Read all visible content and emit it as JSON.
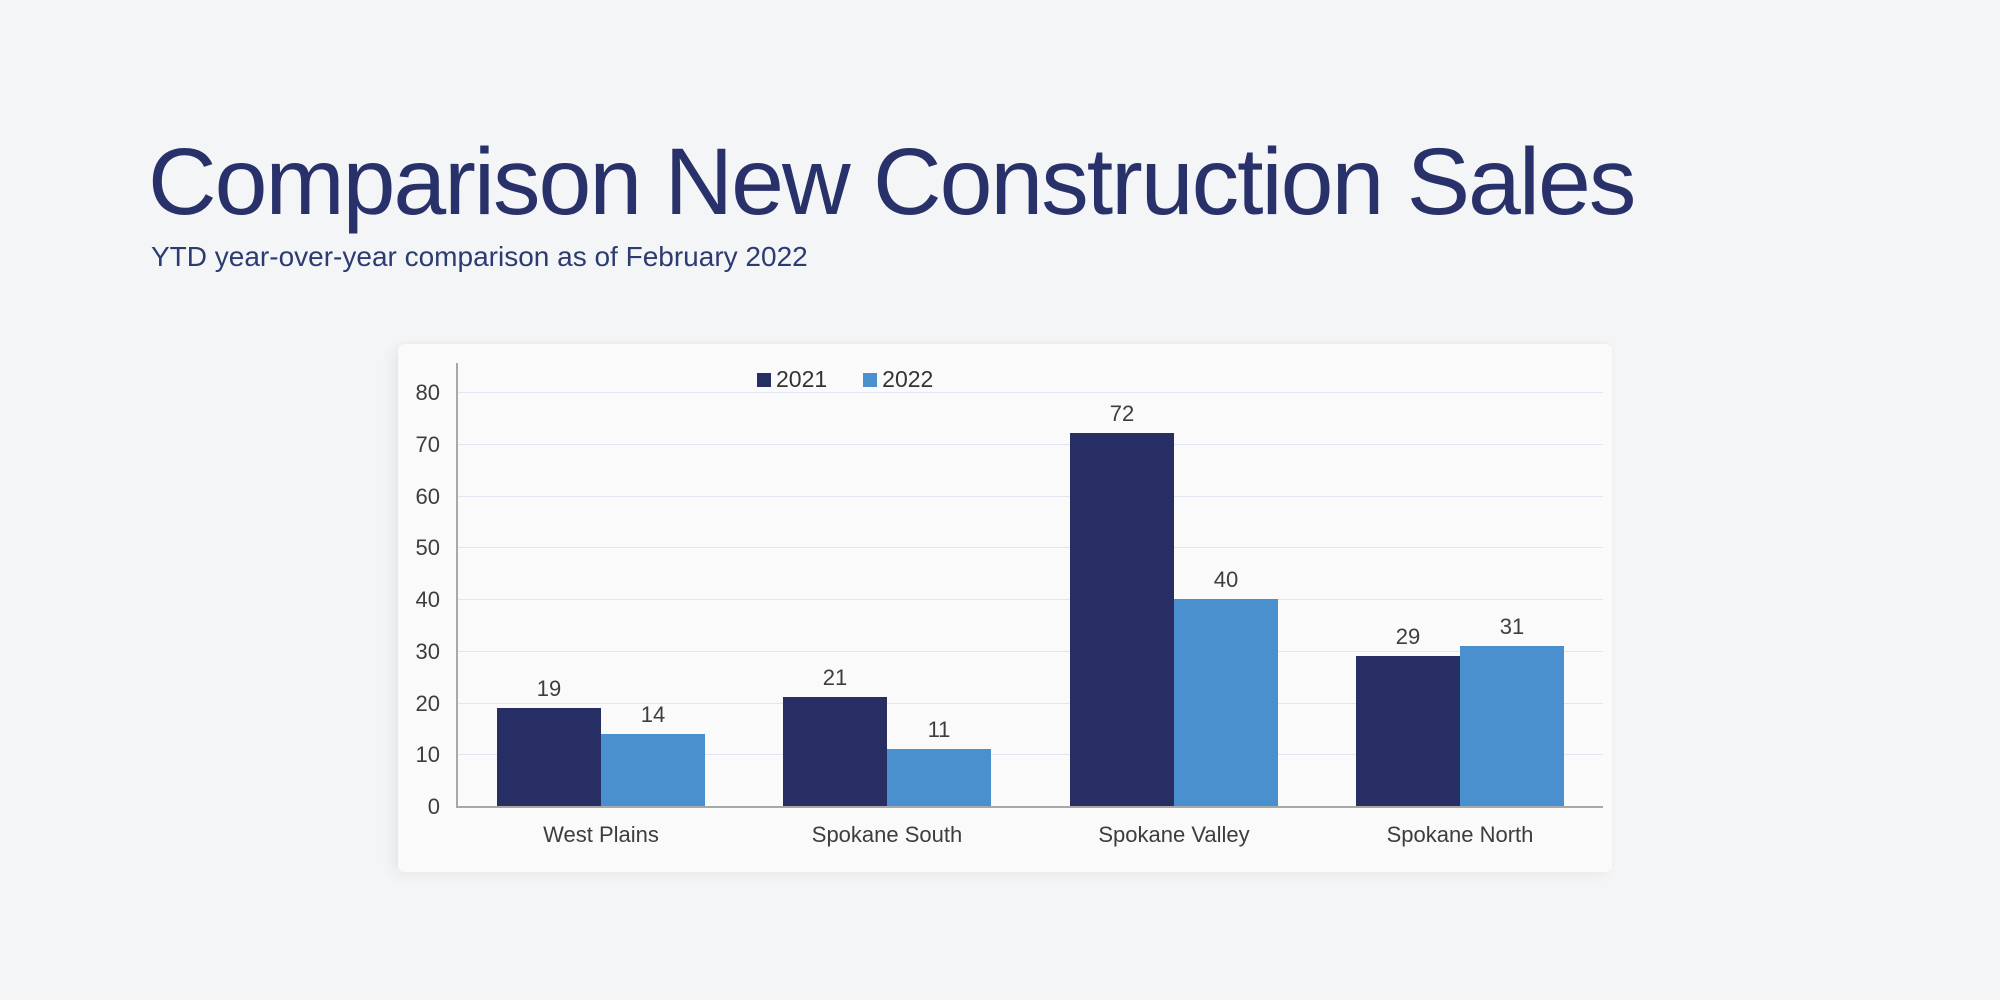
{
  "page": {
    "title": "Comparison New Construction Sales",
    "subtitle": "YTD year-over-year comparison as of February 2022"
  },
  "colors": {
    "background": "#f4f5f6",
    "panel": "#fafafb",
    "title_navy": "#283169",
    "subtitle_navy": "#2c3b72",
    "gridline": "#e2e5f0",
    "axis_gray": "#a8a8a8",
    "label_gray": "#3d3d3d",
    "series_2021": "#272e63",
    "series_2022": "#4a8fce"
  },
  "chart_data": {
    "type": "bar",
    "title": "",
    "xlabel": "",
    "ylabel": "",
    "categories": [
      "West Plains",
      "Spokane South",
      "Spokane Valley",
      "Spokane North"
    ],
    "series": [
      {
        "name": "2021",
        "color": "#272e63",
        "values": [
          19,
          21,
          72,
          29
        ]
      },
      {
        "name": "2022",
        "color": "#4a8fce",
        "values": [
          14,
          11,
          40,
          31
        ]
      }
    ],
    "ylim": [
      0,
      80
    ],
    "yticks": [
      0,
      10,
      20,
      30,
      40,
      50,
      60,
      70,
      80
    ],
    "grid": true,
    "legend_position": "top",
    "value_labels": true
  }
}
